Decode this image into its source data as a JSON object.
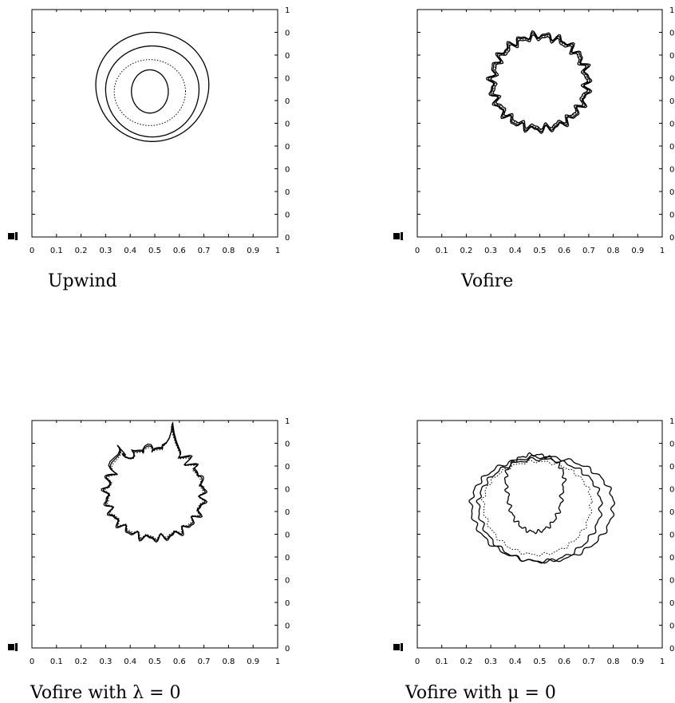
{
  "chart_data": [
    {
      "type": "contour",
      "caption": "Upwind",
      "x_ticks": [
        "0",
        "0.1",
        "0.2",
        "0.3",
        "0.4",
        "0.5",
        "0.6",
        "0.7",
        "0.8",
        "0.9",
        "1"
      ],
      "right_tick_top": "1",
      "right_tick_labels": [
        "0",
        "0",
        "0",
        "0",
        "0",
        "0",
        "0",
        "0",
        "0",
        "0"
      ],
      "xlim": [
        0,
        1
      ],
      "ylim": [
        0,
        1
      ],
      "contours": [
        {
          "style": "solid",
          "cx": 0.49,
          "cy": 0.67,
          "rx": 0.23,
          "ry": 0.23,
          "yshift": -0.02,
          "rough": 0.0
        },
        {
          "style": "solid",
          "cx": 0.49,
          "cy": 0.65,
          "rx": 0.19,
          "ry": 0.19,
          "yshift": -0.02,
          "rough": 0.0
        },
        {
          "style": "dotted",
          "cx": 0.48,
          "cy": 0.64,
          "rx": 0.145,
          "ry": 0.14,
          "yshift": -0.01,
          "rough": 0.0
        },
        {
          "style": "solid",
          "cx": 0.48,
          "cy": 0.64,
          "rx": 0.075,
          "ry": 0.095,
          "yshift": 0,
          "rough": 0.0
        }
      ]
    },
    {
      "type": "contour",
      "caption": "Vofire",
      "x_ticks": [
        "0",
        "0.1",
        "0.2",
        "0.3",
        "0.4",
        "0.5",
        "0.6",
        "0.7",
        "0.8",
        "0.9",
        "1"
      ],
      "right_tick_top": "1",
      "right_tick_labels": [
        "0",
        "0",
        "0",
        "0",
        "0",
        "0",
        "0",
        "0",
        "0",
        "0"
      ],
      "xlim": [
        0,
        1
      ],
      "ylim": [
        0,
        1
      ],
      "contours": [
        {
          "style": "solid",
          "cx": 0.5,
          "cy": 0.68,
          "rx": 0.2,
          "ry": 0.21,
          "yshift": 0,
          "rough": 0.012
        },
        {
          "style": "solid",
          "cx": 0.5,
          "cy": 0.68,
          "rx": 0.195,
          "ry": 0.205,
          "yshift": 0,
          "rough": 0.01
        },
        {
          "style": "dotted",
          "cx": 0.5,
          "cy": 0.68,
          "rx": 0.19,
          "ry": 0.2,
          "yshift": 0,
          "rough": 0.008
        },
        {
          "style": "solid",
          "cx": 0.5,
          "cy": 0.68,
          "rx": 0.185,
          "ry": 0.195,
          "yshift": 0,
          "rough": 0.01
        }
      ]
    },
    {
      "type": "contour",
      "caption": "Vofire with λ = 0",
      "x_ticks": [
        "0",
        "0.1",
        "0.2",
        "0.3",
        "0.4",
        "0.5",
        "0.6",
        "0.7",
        "0.8",
        "0.9",
        "1"
      ],
      "right_tick_top": "1",
      "right_tick_labels": [
        "0",
        "0",
        "0",
        "0",
        "0",
        "0",
        "0",
        "0",
        "0",
        "0"
      ],
      "xlim": [
        0,
        1
      ],
      "ylim": [
        0,
        1
      ],
      "fingers": true,
      "contours": [
        {
          "style": "solid",
          "cx": 0.5,
          "cy": 0.68,
          "rx": 0.2,
          "ry": 0.2,
          "yshift": 0,
          "rough": 0.012
        },
        {
          "style": "solid",
          "cx": 0.5,
          "cy": 0.68,
          "rx": 0.195,
          "ry": 0.195,
          "yshift": 0,
          "rough": 0.01
        },
        {
          "style": "dotted",
          "cx": 0.5,
          "cy": 0.68,
          "rx": 0.19,
          "ry": 0.19,
          "yshift": 0,
          "rough": 0.008
        }
      ]
    },
    {
      "type": "contour",
      "caption": "Vofire with μ = 0",
      "x_ticks": [
        "0",
        "0.1",
        "0.2",
        "0.3",
        "0.4",
        "0.5",
        "0.6",
        "0.7",
        "0.8",
        "0.9",
        "1"
      ],
      "right_tick_top": "1",
      "right_tick_labels": [
        "0",
        "0",
        "0",
        "0",
        "0",
        "0",
        "0",
        "0",
        "0",
        "0"
      ],
      "xlim": [
        0,
        1
      ],
      "ylim": [
        0,
        1
      ],
      "contours": [
        {
          "style": "solid",
          "cx": 0.51,
          "cy": 0.63,
          "rx": 0.29,
          "ry": 0.21,
          "yshift": -0.04,
          "rough": 0.006
        },
        {
          "style": "solid",
          "cx": 0.5,
          "cy": 0.63,
          "rx": 0.25,
          "ry": 0.2,
          "yshift": -0.05,
          "rough": 0.006
        },
        {
          "style": "dotted",
          "cx": 0.49,
          "cy": 0.64,
          "rx": 0.22,
          "ry": 0.18,
          "yshift": -0.05,
          "rough": 0.005
        },
        {
          "style": "solid",
          "cx": 0.48,
          "cy": 0.68,
          "rx": 0.11,
          "ry": 0.17,
          "yshift": -0.06,
          "rough": 0.006,
          "tri": true
        }
      ]
    }
  ]
}
